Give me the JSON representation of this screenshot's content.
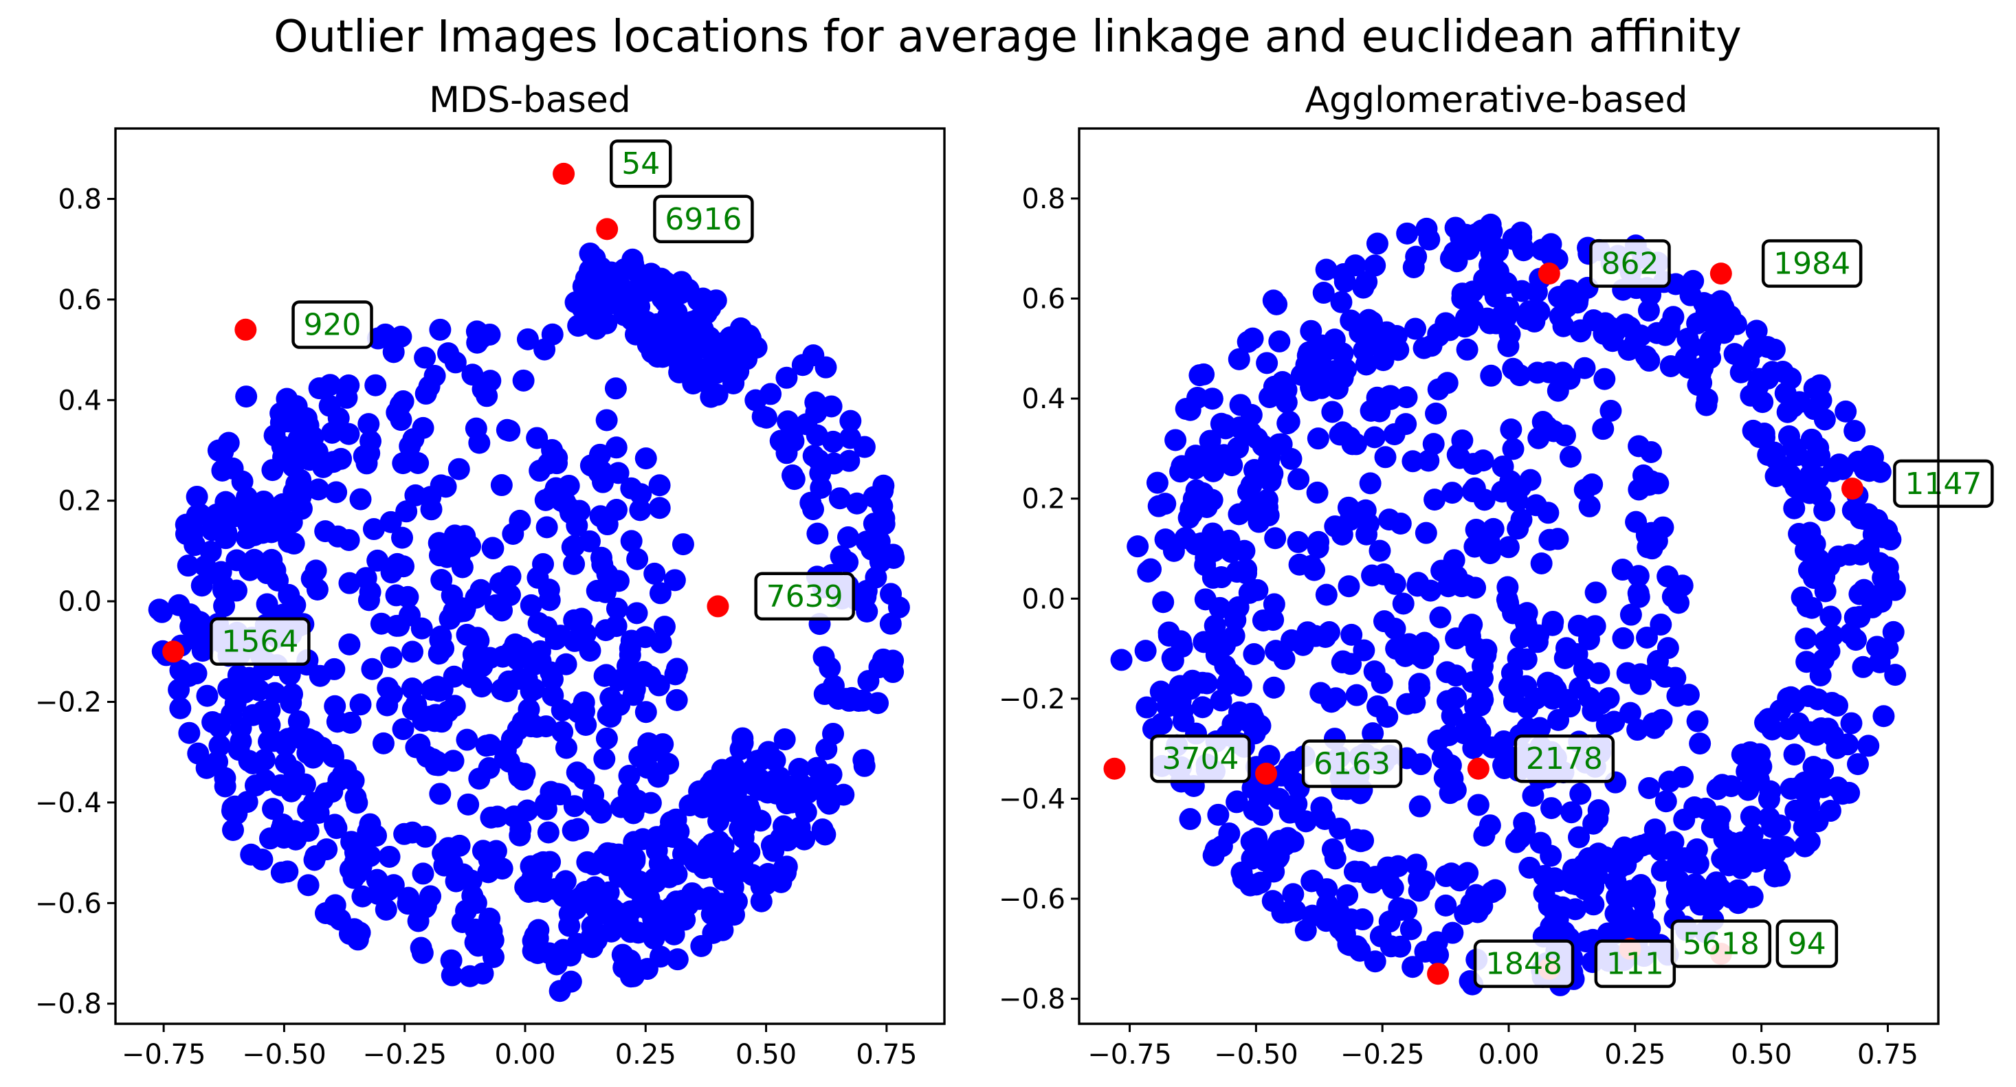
{
  "chart_data": {
    "type": "scatter",
    "suptitle": "Outlier Images locations for average linkage and euclidean affinity",
    "colors": {
      "inlier": "#0000ff",
      "outlier": "#ff0000",
      "annotation_text": "#008000"
    },
    "panels": [
      {
        "title": "MDS-based",
        "xlim": [
          -0.85,
          0.87
        ],
        "ylim": [
          -0.84,
          0.94
        ],
        "xticks": [
          -0.75,
          -0.5,
          -0.25,
          0.0,
          0.25,
          0.5,
          0.75
        ],
        "xtick_labels": [
          "−0.75",
          "−0.50",
          "−0.25",
          "0.00",
          "0.25",
          "0.50",
          "0.75"
        ],
        "yticks": [
          -0.8,
          -0.6,
          -0.4,
          -0.2,
          0.0,
          0.2,
          0.4,
          0.6,
          0.8
        ],
        "ytick_labels": [
          "−0.8",
          "−0.6",
          "−0.4",
          "−0.2",
          "0.0",
          "0.2",
          "0.4",
          "0.6",
          "0.8"
        ],
        "outliers": [
          {
            "label": "54",
            "x": 0.08,
            "y": 0.85,
            "label_x": 0.24,
            "label_y": 0.87
          },
          {
            "label": "6916",
            "x": 0.17,
            "y": 0.74,
            "label_x": 0.37,
            "label_y": 0.76
          },
          {
            "label": "920",
            "x": -0.58,
            "y": 0.54,
            "label_x": -0.4,
            "label_y": 0.55
          },
          {
            "label": "7639",
            "x": 0.4,
            "y": -0.01,
            "label_x": 0.58,
            "label_y": 0.01
          },
          {
            "label": "1564",
            "x": -0.73,
            "y": -0.1,
            "label_x": -0.55,
            "label_y": -0.08
          }
        ],
        "inlier_shape": {
          "seed": 11,
          "clusters": [
            {
              "type": "ring",
              "n": 230,
              "r_min": 0.52,
              "r_max": 0.78,
              "a_start": 270,
              "a_end": 330,
              "cx": 0.0,
              "cy": 0.0
            },
            {
              "type": "ring",
              "n": 90,
              "r_min": 0.6,
              "r_max": 0.78,
              "a_start": 330,
              "a_end": 400,
              "cx": 0.0,
              "cy": 0.0
            },
            {
              "type": "ring",
              "n": 140,
              "r_min": 0.55,
              "r_max": 0.72,
              "a_start": 45,
              "a_end": 80,
              "cx": 0.0,
              "cy": 0.0
            },
            {
              "type": "ring",
              "n": 200,
              "r_min": 0.5,
              "r_max": 0.76,
              "a_start": 180,
              "a_end": 265,
              "cx": 0.0,
              "cy": 0.0
            },
            {
              "type": "disk",
              "n": 260,
              "r": 0.45,
              "cx": -0.12,
              "cy": 0.12
            },
            {
              "type": "disk",
              "n": 120,
              "r": 0.28,
              "cx": 0.05,
              "cy": -0.22
            },
            {
              "type": "ring",
              "n": 70,
              "r_min": 0.5,
              "r_max": 0.72,
              "a_start": 140,
              "a_end": 178,
              "cx": 0.0,
              "cy": 0.0
            }
          ]
        }
      },
      {
        "title": "Agglomerative-based",
        "xlim": [
          -0.85,
          0.85
        ],
        "ylim": [
          -0.85,
          0.94
        ],
        "xticks": [
          -0.75,
          -0.5,
          -0.25,
          0.0,
          0.25,
          0.5,
          0.75
        ],
        "xtick_labels": [
          "−0.75",
          "−0.50",
          "−0.25",
          "0.00",
          "0.25",
          "0.50",
          "0.75"
        ],
        "yticks": [
          -0.8,
          -0.6,
          -0.4,
          -0.2,
          0.0,
          0.2,
          0.4,
          0.6,
          0.8
        ],
        "ytick_labels": [
          "−0.8",
          "−0.6",
          "−0.4",
          "−0.2",
          "0.0",
          "0.2",
          "0.4",
          "0.6",
          "0.8"
        ],
        "outliers": [
          {
            "label": "862",
            "x": 0.08,
            "y": 0.65,
            "label_x": 0.24,
            "label_y": 0.67
          },
          {
            "label": "1984",
            "x": 0.42,
            "y": 0.65,
            "label_x": 0.6,
            "label_y": 0.67
          },
          {
            "label": "1147",
            "x": 0.68,
            "y": 0.22,
            "label_x": 0.86,
            "label_y": 0.23
          },
          {
            "label": "3704",
            "x": -0.78,
            "y": -0.34,
            "label_x": -0.61,
            "label_y": -0.32
          },
          {
            "label": "6163",
            "x": -0.48,
            "y": -0.35,
            "label_x": -0.31,
            "label_y": -0.33
          },
          {
            "label": "2178",
            "x": -0.06,
            "y": -0.34,
            "label_x": 0.11,
            "label_y": -0.32
          },
          {
            "label": "1848",
            "x": -0.14,
            "y": -0.75,
            "label_x": 0.03,
            "label_y": -0.73
          },
          {
            "label": "111",
            "x": 0.08,
            "y": -0.74,
            "label_x": 0.25,
            "label_y": -0.73
          },
          {
            "label": "94",
            "x": 0.42,
            "y": -0.71,
            "label_x": 0.59,
            "label_y": -0.69
          },
          {
            "label": "5618",
            "x": 0.24,
            "y": -0.7,
            "label_x": 0.42,
            "label_y": -0.69
          }
        ],
        "inlier_shape": {
          "seed": 23,
          "clusters": [
            {
              "type": "ring",
              "n": 190,
              "r_min": 0.55,
              "r_max": 0.78,
              "a_start": 275,
              "a_end": 335,
              "cx": 0.0,
              "cy": 0.0
            },
            {
              "type": "ring",
              "n": 130,
              "r_min": 0.58,
              "r_max": 0.78,
              "a_start": 335,
              "a_end": 400,
              "cx": 0.0,
              "cy": 0.0
            },
            {
              "type": "ring",
              "n": 150,
              "r_min": 0.55,
              "r_max": 0.75,
              "a_start": 40,
              "a_end": 100,
              "cx": 0.0,
              "cy": 0.0
            },
            {
              "type": "ring",
              "n": 170,
              "r_min": 0.55,
              "r_max": 0.78,
              "a_start": 185,
              "a_end": 268,
              "cx": 0.0,
              "cy": 0.0
            },
            {
              "type": "disk",
              "n": 330,
              "r": 0.5,
              "cx": -0.14,
              "cy": 0.08
            },
            {
              "type": "disk",
              "n": 90,
              "r": 0.26,
              "cx": 0.12,
              "cy": -0.3
            },
            {
              "type": "ring",
              "n": 110,
              "r_min": 0.52,
              "r_max": 0.76,
              "a_start": 100,
              "a_end": 182,
              "cx": 0.0,
              "cy": 0.0
            }
          ]
        }
      }
    ]
  }
}
